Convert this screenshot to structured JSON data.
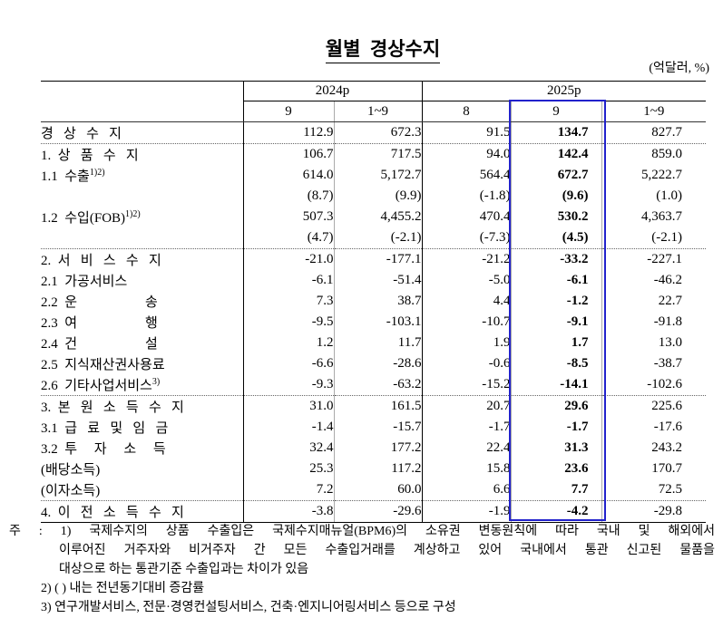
{
  "title": "월별  경상수지",
  "units": "(억달러, %)",
  "table": {
    "col_groups": [
      {
        "label": "2024p",
        "span": 2
      },
      {
        "label": "2025p",
        "span": 3
      }
    ],
    "sub_headers": [
      "9",
      "1~9",
      "8",
      "9",
      "1~9"
    ],
    "highlight_col": 3,
    "highlight_color": "#2222cc",
    "rows": [
      {
        "label": "경   상   수   지",
        "sup": "",
        "indent": 0,
        "bold": true,
        "group_start": false,
        "values": [
          "112.9",
          "672.3",
          "91.5",
          "134.7",
          "827.7"
        ]
      },
      {
        "label": "1.  상   품   수   지",
        "sup": "",
        "indent": 1,
        "bold": false,
        "group_start": true,
        "values": [
          "106.7",
          "717.5",
          "94.0",
          "142.4",
          "859.0"
        ]
      },
      {
        "label": "1.1  수출",
        "sup": "1)2)",
        "indent": 2,
        "bold": false,
        "group_start": false,
        "values": [
          "614.0",
          "5,172.7",
          "564.4",
          "672.7",
          "5,222.7"
        ]
      },
      {
        "label": "",
        "sup": "",
        "indent": 2,
        "bold": false,
        "group_start": false,
        "values": [
          "(8.7)",
          "(9.9)",
          "(-1.8)",
          "(9.6)",
          "(1.0)"
        ]
      },
      {
        "label": "1.2  수입(FOB)",
        "sup": "1)2)",
        "indent": 2,
        "bold": false,
        "group_start": false,
        "values": [
          "507.3",
          "4,455.2",
          "470.4",
          "530.2",
          "4,363.7"
        ]
      },
      {
        "label": "",
        "sup": "",
        "indent": 2,
        "bold": false,
        "group_start": false,
        "values": [
          "(4.7)",
          "(-2.1)",
          "(-7.3)",
          "(4.5)",
          "(-2.1)"
        ]
      },
      {
        "label": "2.  서   비   스   수   지",
        "sup": "",
        "indent": 1,
        "bold": false,
        "group_start": true,
        "values": [
          "-21.0",
          "-177.1",
          "-21.2",
          "-33.2",
          "-227.1"
        ]
      },
      {
        "label": "2.1  가공서비스",
        "sup": "",
        "indent": 2,
        "bold": false,
        "group_start": false,
        "values": [
          "-6.1",
          "-51.4",
          "-5.0",
          "-6.1",
          "-46.2"
        ]
      },
      {
        "label": "2.2  운                    송",
        "sup": "",
        "indent": 2,
        "bold": false,
        "group_start": false,
        "values": [
          "7.3",
          "38.7",
          "4.4",
          "-1.2",
          "22.7"
        ]
      },
      {
        "label": "2.3  여                    행",
        "sup": "",
        "indent": 2,
        "bold": false,
        "group_start": false,
        "values": [
          "-9.5",
          "-103.1",
          "-10.7",
          "-9.1",
          "-91.8"
        ]
      },
      {
        "label": "2.4  건                    설",
        "sup": "",
        "indent": 2,
        "bold": false,
        "group_start": false,
        "values": [
          "1.2",
          "11.7",
          "1.9",
          "1.7",
          "13.0"
        ]
      },
      {
        "label": "2.5  지식재산권사용료",
        "sup": "",
        "indent": 2,
        "bold": false,
        "group_start": false,
        "values": [
          "-6.6",
          "-28.6",
          "-0.6",
          "-8.5",
          "-38.7"
        ]
      },
      {
        "label": "2.6  기타사업서비스",
        "sup": "3)",
        "indent": 2,
        "bold": false,
        "group_start": false,
        "values": [
          "-9.3",
          "-63.2",
          "-15.2",
          "-14.1",
          "-102.6"
        ]
      },
      {
        "label": "3.  본   원   소   득   수   지",
        "sup": "",
        "indent": 1,
        "bold": false,
        "group_start": true,
        "values": [
          "31.0",
          "161.5",
          "20.7",
          "29.6",
          "225.6"
        ]
      },
      {
        "label": "3.1  급   료   및   임   금",
        "sup": "",
        "indent": 2,
        "bold": false,
        "group_start": false,
        "values": [
          "-1.4",
          "-15.7",
          "-1.7",
          "-1.7",
          "-17.6"
        ]
      },
      {
        "label": "3.2  투     자     소     득",
        "sup": "",
        "indent": 2,
        "bold": false,
        "group_start": false,
        "values": [
          "32.4",
          "177.2",
          "22.4",
          "31.3",
          "243.2"
        ]
      },
      {
        "label": "(배당소득)",
        "sup": "",
        "indent": 3,
        "bold": false,
        "group_start": false,
        "values": [
          "25.3",
          "117.2",
          "15.8",
          "23.6",
          "170.7"
        ]
      },
      {
        "label": "(이자소득)",
        "sup": "",
        "indent": 3,
        "bold": false,
        "group_start": false,
        "values": [
          "7.2",
          "60.0",
          "6.6",
          "7.7",
          "72.5"
        ]
      },
      {
        "label": "4.  이   전   소   득   수   지",
        "sup": "",
        "indent": 1,
        "bold": false,
        "group_start": true,
        "values": [
          "-3.8",
          "-29.6",
          "-1.9",
          "-4.2",
          "-29.8"
        ]
      }
    ]
  },
  "footnotes": {
    "line1": "주 : 1) 국제수지의 상품 수출입은 국제수지매뉴얼(BPM6)의 소유권 변동원칙에 따라 국내 및 해외에서",
    "line2": "이루어진 거주자와 비거주자 간 모든 수출입거래를 계상하고 있어 국내에서 통관 신고된 물품을",
    "line3": "대상으로 하는 통관기준 수출입과는 차이가 있음",
    "line4": "2) (  ) 내는 전년동기대비 증감률",
    "line5": "3) 연구개발서비스, 전문·경영컨설팅서비스, 건축·엔지니어링서비스 등으로 구성"
  }
}
